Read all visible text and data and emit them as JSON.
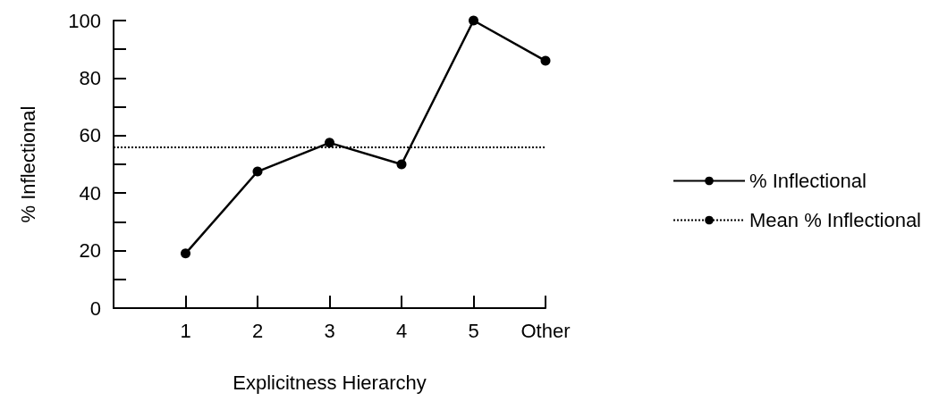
{
  "chart_data": {
    "type": "line",
    "xlabel": "Explicitness Hierarchy",
    "ylabel": "% Inflectional",
    "categories": [
      null,
      "1",
      "2",
      "3",
      "4",
      "5",
      "Other"
    ],
    "series": [
      {
        "name": "% Inflectional",
        "color": "#000000",
        "values": [
          null,
          19,
          47.5,
          57.5,
          50,
          100,
          86
        ]
      }
    ],
    "ylim": [
      0,
      100
    ],
    "yticks": [
      0,
      {
        "value": 10,
        "label": null
      },
      20,
      {
        "value": 30,
        "label": null
      },
      40,
      {
        "value": 50,
        "label": null
      },
      60,
      {
        "value": 70,
        "label": null
      },
      80,
      {
        "value": 90,
        "label": null
      },
      100
    ],
    "ref_lines": [
      {
        "axis": "y",
        "value": 56,
        "label": "Mean % Inflectional",
        "color": "#000000",
        "line_style": "dotted"
      }
    ],
    "marker": "circle",
    "line_style": "solid",
    "grid": false,
    "legend": "right"
  }
}
